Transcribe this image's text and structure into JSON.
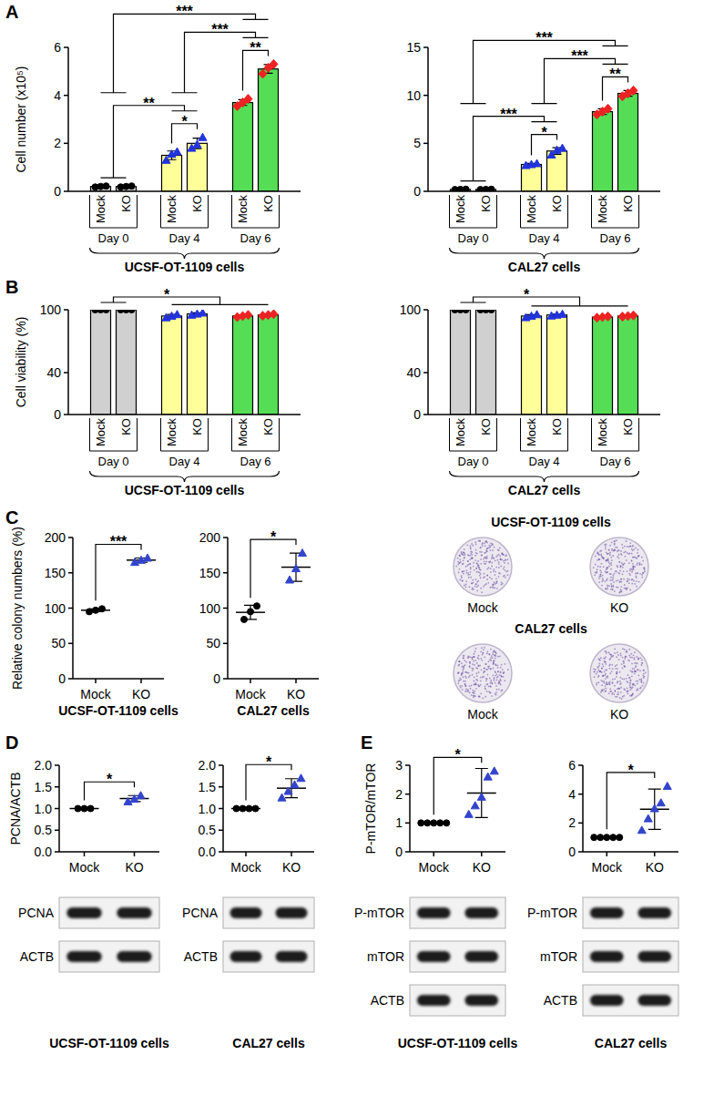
{
  "chart_data": [
    {
      "type": "bar",
      "panel": "A",
      "ylabel": "Cell number (x10⁵)",
      "xlabel": "UCSF-OT-1109 cells",
      "categories": [
        "Mock",
        "KO",
        "Mock",
        "KO",
        "Mock",
        "KO"
      ],
      "groups": [
        {
          "label": "Day 0",
          "from": 0,
          "to": 1
        },
        {
          "label": "Day 4",
          "from": 2,
          "to": 3
        },
        {
          "label": "Day 6",
          "from": 4,
          "to": 5
        }
      ],
      "values": [
        0.2,
        0.2,
        1.5,
        2.0,
        3.7,
        5.1
      ],
      "errors": [
        0.02,
        0.02,
        0.18,
        0.22,
        0.12,
        0.18
      ],
      "points": [
        [
          0.18,
          0.2,
          0.22
        ],
        [
          0.18,
          0.2,
          0.22
        ],
        [
          1.3,
          1.55,
          1.65
        ],
        [
          1.8,
          1.95,
          2.25
        ],
        [
          3.55,
          3.7,
          3.85
        ],
        [
          4.9,
          5.15,
          5.3
        ]
      ],
      "colors": [
        "#d0d0d0",
        "#d0d0d0",
        "#ffff99",
        "#ffff99",
        "#55dd55",
        "#55dd55"
      ],
      "point_colors": [
        "#000000",
        "#000000",
        "#2233dd",
        "#2233dd",
        "#ee2222",
        "#ee2222"
      ],
      "marker": [
        "circle",
        "circle",
        "triangle",
        "triangle",
        "diamond",
        "diamond"
      ],
      "ylim": [
        0,
        6
      ],
      "yticks": [
        0,
        2,
        4,
        6
      ],
      "significance": [
        {
          "label": "***",
          "left": [
            0,
            1
          ],
          "right": [
            4,
            5
          ]
        },
        {
          "label": "**",
          "left": [
            0,
            1
          ],
          "right": [
            2,
            3
          ]
        },
        {
          "label": "***",
          "left": [
            2,
            3
          ],
          "right": [
            4,
            5
          ]
        },
        {
          "label": "*",
          "left": [
            2,
            2
          ],
          "right": [
            3,
            3
          ]
        },
        {
          "label": "**",
          "left": [
            4,
            4
          ],
          "right": [
            5,
            5
          ]
        }
      ]
    },
    {
      "type": "bar",
      "xlabel": "CAL27 cells",
      "categories": [
        "Mock",
        "KO",
        "Mock",
        "KO",
        "Mock",
        "KO"
      ],
      "groups": [
        {
          "label": "Day 0",
          "from": 0,
          "to": 1
        },
        {
          "label": "Day 4",
          "from": 2,
          "to": 3
        },
        {
          "label": "Day 6",
          "from": 4,
          "to": 5
        }
      ],
      "values": [
        0.2,
        0.2,
        2.8,
        4.2,
        8.3,
        10.2
      ],
      "errors": [
        0.02,
        0.02,
        0.1,
        0.35,
        0.3,
        0.3
      ],
      "points": [
        [
          0.18,
          0.2,
          0.22
        ],
        [
          0.18,
          0.2,
          0.22
        ],
        [
          2.7,
          2.8,
          2.9
        ],
        [
          3.8,
          4.3,
          4.5
        ],
        [
          8.0,
          8.3,
          8.6
        ],
        [
          9.9,
          10.2,
          10.5
        ]
      ],
      "colors": [
        "#d0d0d0",
        "#d0d0d0",
        "#ffff99",
        "#ffff99",
        "#55dd55",
        "#55dd55"
      ],
      "point_colors": [
        "#000000",
        "#000000",
        "#2233dd",
        "#2233dd",
        "#ee2222",
        "#ee2222"
      ],
      "marker": [
        "circle",
        "circle",
        "triangle",
        "triangle",
        "diamond",
        "diamond"
      ],
      "ylim": [
        0,
        15
      ],
      "yticks": [
        0,
        5,
        10,
        15
      ],
      "significance": [
        {
          "label": "***",
          "left": [
            0,
            1
          ],
          "right": [
            4,
            5
          ]
        },
        {
          "label": "***",
          "left": [
            0,
            1
          ],
          "right": [
            2,
            3
          ]
        },
        {
          "label": "***",
          "left": [
            2,
            3
          ],
          "right": [
            4,
            5
          ]
        },
        {
          "label": "*",
          "left": [
            2,
            2
          ],
          "right": [
            3,
            3
          ]
        },
        {
          "label": "**",
          "left": [
            4,
            4
          ],
          "right": [
            5,
            5
          ]
        }
      ]
    },
    {
      "type": "bar",
      "panel": "B",
      "ylabel": "Cell viability (%)",
      "xlabel": "UCSF-OT-1109 cells",
      "categories": [
        "Mock",
        "KO",
        "Mock",
        "KO",
        "Mock",
        "KO"
      ],
      "groups": [
        {
          "label": "Day 0",
          "from": 0,
          "to": 1
        },
        {
          "label": "Day 4",
          "from": 2,
          "to": 3
        },
        {
          "label": "Day 6",
          "from": 4,
          "to": 5
        }
      ],
      "values": [
        100,
        100,
        94,
        96,
        94,
        95
      ],
      "errors": [
        0.3,
        0.3,
        1.5,
        1,
        1,
        0.8
      ],
      "points": [
        [
          100,
          100,
          100
        ],
        [
          100,
          100,
          100
        ],
        [
          92.5,
          94,
          95.5
        ],
        [
          95,
          96,
          97
        ],
        [
          93,
          94,
          95
        ],
        [
          94.2,
          95,
          95.8
        ]
      ],
      "colors": [
        "#d0d0d0",
        "#d0d0d0",
        "#ffff99",
        "#ffff99",
        "#55dd55",
        "#55dd55"
      ],
      "point_colors": [
        "#000000",
        "#000000",
        "#2233dd",
        "#2233dd",
        "#ee2222",
        "#ee2222"
      ],
      "marker": [
        "circle",
        "circle",
        "triangle",
        "triangle",
        "diamond",
        "diamond"
      ],
      "ylim": [
        0,
        100
      ],
      "yticks": [
        0,
        40,
        100
      ],
      "significance": [
        {
          "label": "*",
          "left": [
            0,
            1
          ],
          "right": [
            2,
            5
          ]
        }
      ]
    },
    {
      "type": "bar",
      "xlabel": "CAL27 cells",
      "categories": [
        "Mock",
        "KO",
        "Mock",
        "KO",
        "Mock",
        "KO"
      ],
      "groups": [
        {
          "label": "Day 0",
          "from": 0,
          "to": 1
        },
        {
          "label": "Day 4",
          "from": 2,
          "to": 3
        },
        {
          "label": "Day 6",
          "from": 4,
          "to": 5
        }
      ],
      "values": [
        100,
        100,
        94,
        95,
        93,
        94
      ],
      "errors": [
        0.3,
        0.3,
        1.4,
        0.8,
        0.6,
        0.6
      ],
      "points": [
        [
          100,
          100,
          100
        ],
        [
          100,
          100,
          100
        ],
        [
          92.6,
          94,
          95.4
        ],
        [
          94.2,
          95,
          95.8
        ],
        [
          92.4,
          93,
          93.6
        ],
        [
          93.4,
          94,
          94.6
        ]
      ],
      "colors": [
        "#d0d0d0",
        "#d0d0d0",
        "#ffff99",
        "#ffff99",
        "#55dd55",
        "#55dd55"
      ],
      "point_colors": [
        "#000000",
        "#000000",
        "#2233dd",
        "#2233dd",
        "#ee2222",
        "#ee2222"
      ],
      "marker": [
        "circle",
        "circle",
        "triangle",
        "triangle",
        "diamond",
        "diamond"
      ],
      "ylim": [
        0,
        100
      ],
      "yticks": [
        0,
        40,
        100
      ],
      "significance": [
        {
          "label": "*",
          "left": [
            0,
            1
          ],
          "right": [
            2,
            5
          ]
        }
      ]
    },
    {
      "type": "dot",
      "panel": "C",
      "ylabel": "Relative colony numbers (%)",
      "xlabel": "UCSF-OT-1109 cells",
      "categories": [
        "Mock",
        "KO"
      ],
      "values": [
        97,
        168
      ],
      "errors": [
        2,
        3
      ],
      "points": [
        [
          95,
          97,
          99
        ],
        [
          165,
          168,
          171
        ]
      ],
      "point_colors": [
        "#000000",
        "#3344cc"
      ],
      "marker": [
        "circle",
        "triangle"
      ],
      "ylim": [
        0,
        200
      ],
      "yticks": [
        0,
        50,
        100,
        150,
        200
      ],
      "significance": [
        {
          "label": "***",
          "left": [
            0,
            0
          ],
          "right": [
            1,
            1
          ]
        }
      ]
    },
    {
      "type": "dot",
      "xlabel": "CAL27 cells",
      "categories": [
        "Mock",
        "KO"
      ],
      "values": [
        94,
        158
      ],
      "errors": [
        10,
        20
      ],
      "points": [
        [
          84,
          95,
          103
        ],
        [
          140,
          156,
          178
        ]
      ],
      "point_colors": [
        "#000000",
        "#3344cc"
      ],
      "marker": [
        "circle",
        "triangle"
      ],
      "ylim": [
        0,
        200
      ],
      "yticks": [
        0,
        50,
        100,
        150,
        200
      ],
      "significance": [
        {
          "label": "*",
          "left": [
            0,
            0
          ],
          "right": [
            1,
            1
          ]
        }
      ]
    },
    {
      "type": "dot",
      "panel": "D",
      "ylabel": "PCNA/ACTB",
      "xlabel": "UCSF-OT-1109 cells",
      "categories": [
        "Mock",
        "KO"
      ],
      "values": [
        1,
        1.23
      ],
      "errors": [
        0,
        0.07
      ],
      "points": [
        [
          1,
          1,
          1
        ],
        [
          1.16,
          1.22,
          1.3
        ]
      ],
      "point_colors": [
        "#000000",
        "#3344cc"
      ],
      "marker": [
        "circle",
        "triangle"
      ],
      "ylim": [
        0,
        2
      ],
      "yticks": [
        {
          "value": 0,
          "label": "0.0"
        },
        0.5,
        {
          "value": 1,
          "label": "1.0"
        },
        1.5,
        {
          "value": 2,
          "label": "2.0"
        }
      ],
      "significance": [
        {
          "label": "*",
          "left": [
            0,
            0
          ],
          "right": [
            1,
            1
          ]
        }
      ],
      "blot_rows": [
        "PCNA",
        "ACTB"
      ]
    },
    {
      "type": "dot",
      "xlabel": "CAL27 cells",
      "categories": [
        "Mock",
        "KO"
      ],
      "values": [
        1,
        1.47
      ],
      "errors": [
        0,
        0.22
      ],
      "points": [
        [
          1,
          1,
          1,
          1
        ],
        [
          1.25,
          1.4,
          1.55,
          1.7
        ]
      ],
      "point_colors": [
        "#000000",
        "#3344cc"
      ],
      "marker": [
        "circle",
        "triangle"
      ],
      "ylim": [
        0,
        2
      ],
      "yticks": [
        {
          "value": 0,
          "label": "0.0"
        },
        0.5,
        {
          "value": 1,
          "label": "1.0"
        },
        1.5,
        {
          "value": 2,
          "label": "2.0"
        }
      ],
      "significance": [
        {
          "label": "*",
          "left": [
            0,
            0
          ],
          "right": [
            1,
            1
          ]
        }
      ],
      "blot_rows": [
        "PCNA",
        "ACTB"
      ]
    },
    {
      "type": "dot",
      "panel": "E",
      "ylabel": "P-mTOR/mTOR",
      "xlabel": "UCSF-OT-1109 cells",
      "categories": [
        "Mock",
        "KO"
      ],
      "values": [
        1,
        2.04
      ],
      "errors": [
        0,
        0.85
      ],
      "points": [
        [
          1,
          1,
          1,
          1,
          1
        ],
        [
          1.3,
          1.6,
          1.9,
          2.6,
          2.8
        ]
      ],
      "point_colors": [
        "#000000",
        "#3344cc"
      ],
      "marker": [
        "circle",
        "triangle"
      ],
      "ylim": [
        0,
        3
      ],
      "yticks": [
        0,
        1,
        2,
        3
      ],
      "significance": [
        {
          "label": "*",
          "left": [
            0,
            0
          ],
          "right": [
            1,
            1
          ]
        }
      ],
      "blot_rows": [
        "P-mTOR",
        "mTOR",
        "ACTB"
      ]
    },
    {
      "type": "dot",
      "xlabel": "CAL27 cells",
      "categories": [
        "Mock",
        "KO"
      ],
      "values": [
        1,
        2.95
      ],
      "errors": [
        0,
        1.4
      ],
      "points": [
        [
          1,
          1,
          1,
          1,
          1
        ],
        [
          1.5,
          2.3,
          3.0,
          3.4,
          4.55
        ]
      ],
      "point_colors": [
        "#000000",
        "#3344cc"
      ],
      "marker": [
        "circle",
        "triangle"
      ],
      "ylim": [
        0,
        6
      ],
      "yticks": [
        0,
        2,
        4,
        6
      ],
      "significance": [
        {
          "label": "*",
          "left": [
            0,
            0
          ],
          "right": [
            1,
            1
          ]
        }
      ],
      "blot_rows": [
        "P-mTOR",
        "mTOR",
        "ACTB"
      ]
    }
  ]
}
